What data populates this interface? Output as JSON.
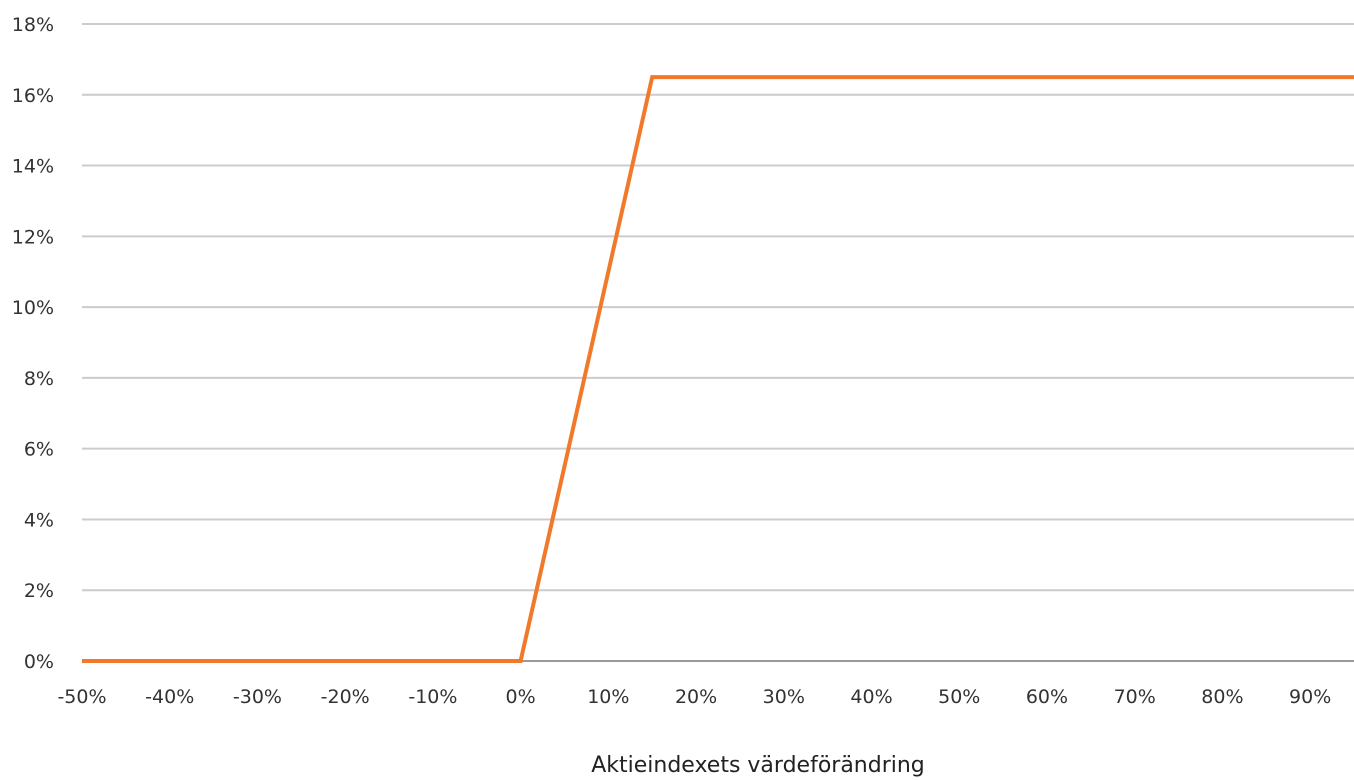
{
  "chart_data": {
    "type": "line",
    "xlabel": "Aktieindexets värdeförändring",
    "ylabel": "",
    "x_ticks": [
      "-50%",
      "-40%",
      "-30%",
      "-20%",
      "-10%",
      "0%",
      "10%",
      "20%",
      "30%",
      "40%",
      "50%",
      "60%",
      "70%",
      "80%",
      "90%"
    ],
    "y_ticks": [
      "0%",
      "2%",
      "4%",
      "6%",
      "8%",
      "10%",
      "12%",
      "14%",
      "16%",
      "18%"
    ],
    "xlim": [
      -50,
      95
    ],
    "ylim": [
      0,
      18
    ],
    "grid": true,
    "legend": "none",
    "series": [
      {
        "color": "#f07a2a",
        "x": [
          -50,
          0,
          15,
          95
        ],
        "y": [
          0,
          0,
          16.5,
          16.5
        ]
      }
    ]
  }
}
